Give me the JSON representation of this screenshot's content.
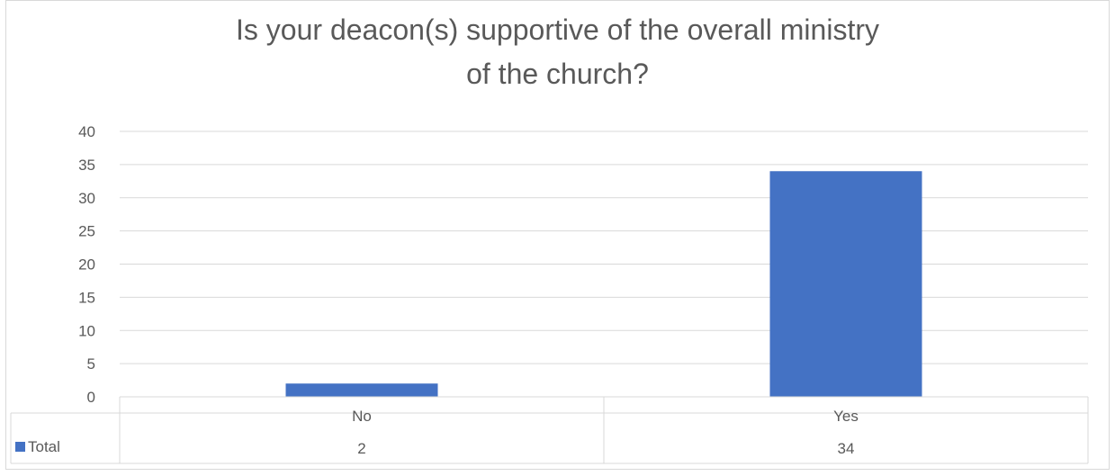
{
  "chart_data": {
    "type": "bar",
    "title": "Is your deacon(s) supportive of the overall ministry of the church?",
    "categories": [
      "No",
      "Yes"
    ],
    "series": [
      {
        "name": "Total",
        "values": [
          2,
          34
        ]
      }
    ],
    "ylim": [
      0,
      40
    ],
    "yticks": [
      "0",
      "5",
      "10",
      "15",
      "20",
      "25",
      "30",
      "35",
      "40"
    ],
    "grid": true,
    "data_table": true,
    "colors": {
      "bar": "#4472c4",
      "grid": "#d9d9d9",
      "text": "#595959"
    }
  }
}
